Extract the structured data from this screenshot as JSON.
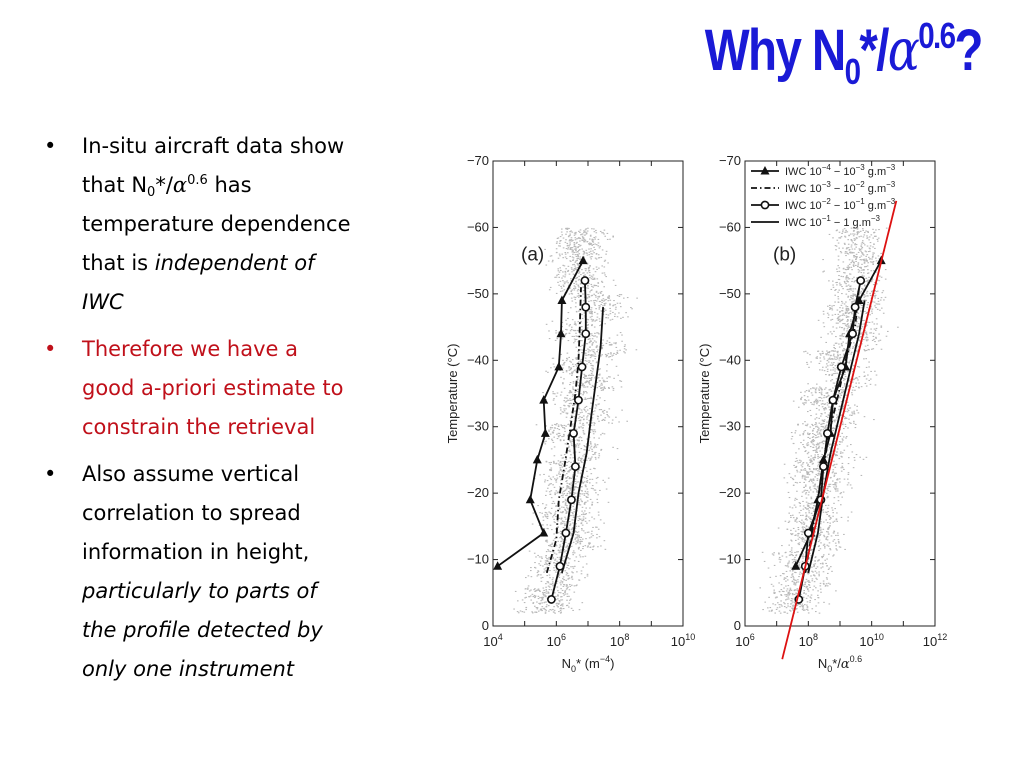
{
  "slide": {
    "title": {
      "prefix": "Why N",
      "sub": "0",
      "star": "*/",
      "alpha": "α",
      "sup": "0.6",
      "suffix": "?"
    }
  },
  "bullets": [
    {
      "color": "#000000",
      "l1": "In-situ aircraft data show",
      "l2a": "that N",
      "l2sub": "0",
      "l2b": "*/",
      "l2alpha": "α",
      "l2sup": "0.6",
      "l2c": " has",
      "l3": "temperature dependence",
      "l4a": "that is ",
      "l4i": "independent of",
      "l5i": "IWC"
    },
    {
      "color": "#c0101a",
      "l1": "Therefore we have a",
      "l2": "good a-priori estimate to",
      "l3": "constrain the retrieval"
    },
    {
      "color": "#000000",
      "l1": "Also assume vertical",
      "l2": "correlation to spread",
      "l3": "information in height,",
      "l4i": "particularly to parts of",
      "l5i": "the profile detected by",
      "l6i": "only one instrument"
    }
  ],
  "chart_data": [
    {
      "type": "line",
      "panel_label": "(a)",
      "xlabel": {
        "base": "N",
        "sub": "0",
        "rest": "* (m",
        "sup": "−4",
        "close": ")"
      },
      "ylabel": "Temperature (°C)",
      "x_scale": "log",
      "xlim": [
        10000,
        10000000000
      ],
      "xticks": [
        {
          "v": 10000,
          "b": "10",
          "e": "4"
        },
        {
          "v": 1000000,
          "b": "10",
          "e": "6"
        },
        {
          "v": 100000000,
          "b": "10",
          "e": "8"
        },
        {
          "v": 10000000000,
          "b": "10",
          "e": "10"
        }
      ],
      "ylim": [
        -70,
        0
      ],
      "yticks": [
        -70,
        -60,
        -50,
        -40,
        -30,
        -20,
        -10,
        0
      ],
      "scatter_background": "gray in-situ points",
      "series": [
        {
          "style": "solid-triangle",
          "points": [
            [
              14000,
              -9
            ],
            [
              400000,
              -14
            ],
            [
              150000,
              -19
            ],
            [
              250000,
              -25
            ],
            [
              450000,
              -29
            ],
            [
              400000,
              -34
            ],
            [
              1200000,
              -39
            ],
            [
              1400000,
              -44
            ],
            [
              1500000,
              -49
            ],
            [
              7000000,
              -55
            ]
          ]
        },
        {
          "style": "dash-dot",
          "points": [
            [
              500000,
              -8
            ],
            [
              1000000,
              -13
            ],
            [
              1200000,
              -19
            ],
            [
              1800000,
              -24
            ],
            [
              2800000,
              -30
            ],
            [
              4000000,
              -35
            ],
            [
              5000000,
              -40
            ],
            [
              5500000,
              -45
            ],
            [
              6000000,
              -51
            ]
          ]
        },
        {
          "style": "solid-circle",
          "points": [
            [
              700000,
              -4
            ],
            [
              1300000,
              -9
            ],
            [
              2000000,
              -14
            ],
            [
              3000000,
              -19
            ],
            [
              4000000,
              -24
            ],
            [
              3500000,
              -29
            ],
            [
              5000000,
              -34
            ],
            [
              6500000,
              -39
            ],
            [
              8500000,
              -44
            ],
            [
              8500000,
              -48
            ],
            [
              8000000,
              -52
            ]
          ]
        },
        {
          "style": "solid",
          "points": [
            [
              1500000,
              -8
            ],
            [
              3500000,
              -14
            ],
            [
              5000000,
              -20
            ],
            [
              9000000,
              -26
            ],
            [
              13000000,
              -32
            ],
            [
              18000000,
              -37
            ],
            [
              25000000,
              -42
            ],
            [
              30000000,
              -48
            ]
          ]
        }
      ]
    },
    {
      "type": "line",
      "panel_label": "(b)",
      "xlabel": {
        "base": "N",
        "sub": "0",
        "rest": "*/",
        "alpha": "α",
        "sup": "0.6",
        "close": ""
      },
      "ylabel": "Temperature (°C)",
      "x_scale": "log",
      "xlim": [
        1000000,
        1000000000000
      ],
      "xticks": [
        {
          "v": 1000000,
          "b": "10",
          "e": "6"
        },
        {
          "v": 100000000,
          "b": "10",
          "e": "8"
        },
        {
          "v": 10000000000,
          "b": "10",
          "e": "10"
        },
        {
          "v": 1000000000000,
          "b": "10",
          "e": "12"
        }
      ],
      "ylim": [
        -70,
        0
      ],
      "yticks": [
        -70,
        -60,
        -50,
        -40,
        -30,
        -20,
        -10,
        0
      ],
      "scatter_background": "gray in-situ points",
      "legend": {
        "placement": "top-left",
        "entries": [
          {
            "style": "solid-triangle",
            "label": "IWC 10",
            "sup1": "−4",
            "mid": " − 10",
            "sup2": "−3",
            "unit": " g.m",
            "sup3": "−3"
          },
          {
            "style": "dash-dot",
            "label": "IWC 10",
            "sup1": "−3",
            "mid": " − 10",
            "sup2": "−2",
            "unit": " g.m",
            "sup3": "−3"
          },
          {
            "style": "solid-circle",
            "label": "IWC 10",
            "sup1": "−2",
            "mid": " − 10",
            "sup2": "−1",
            "unit": " g.m",
            "sup3": "−3"
          },
          {
            "style": "solid",
            "label": "IWC 10",
            "sup1": "−1",
            "mid": " − 1 g.m",
            "sup2": "−3",
            "unit": "",
            "sup3": ""
          }
        ]
      },
      "series": [
        {
          "style": "solid-triangle",
          "points": [
            [
              40000000,
              -9
            ],
            [
              120000000,
              -14
            ],
            [
              200000000,
              -19
            ],
            [
              300000000,
              -25
            ],
            [
              500000000,
              -29
            ],
            [
              600000000,
              -34
            ],
            [
              1500000000,
              -39
            ],
            [
              2000000000,
              -44
            ],
            [
              4000000000,
              -49
            ],
            [
              20000000000,
              -55
            ]
          ]
        },
        {
          "style": "dash-dot",
          "points": [
            [
              80000000,
              -8
            ],
            [
              120000000,
              -13
            ],
            [
              200000000,
              -19
            ],
            [
              300000000,
              -24
            ],
            [
              500000000,
              -30
            ],
            [
              900000000,
              -35
            ],
            [
              1500000000,
              -40
            ],
            [
              3000000000,
              -45
            ],
            [
              4000000000,
              -51
            ]
          ]
        },
        {
          "style": "solid-circle",
          "points": [
            [
              50000000,
              -4
            ],
            [
              80000000,
              -9
            ],
            [
              100000000,
              -14
            ],
            [
              250000000,
              -19
            ],
            [
              300000000,
              -24
            ],
            [
              400000000,
              -29
            ],
            [
              600000000,
              -34
            ],
            [
              1100000000,
              -39
            ],
            [
              2500000000,
              -44
            ],
            [
              3000000000,
              -48
            ],
            [
              4500000000,
              -52
            ]
          ]
        },
        {
          "style": "solid",
          "points": [
            [
              100000000,
              -8
            ],
            [
              200000000,
              -14
            ],
            [
              300000000,
              -20
            ],
            [
              500000000,
              -26
            ],
            [
              1000000000,
              -32
            ],
            [
              2000000000,
              -38
            ],
            [
              4000000000,
              -44
            ],
            [
              6000000000,
              -49
            ]
          ]
        }
      ],
      "reference_line": {
        "color": "#dd1111",
        "points": [
          [
            15000000,
            5
          ],
          [
            60000000000,
            -64
          ]
        ]
      }
    }
  ],
  "colors": {
    "title": "#1a1ad6",
    "red_text": "#c0101a",
    "ref_line": "#dd1111",
    "scatter": "#b8b8b8"
  }
}
